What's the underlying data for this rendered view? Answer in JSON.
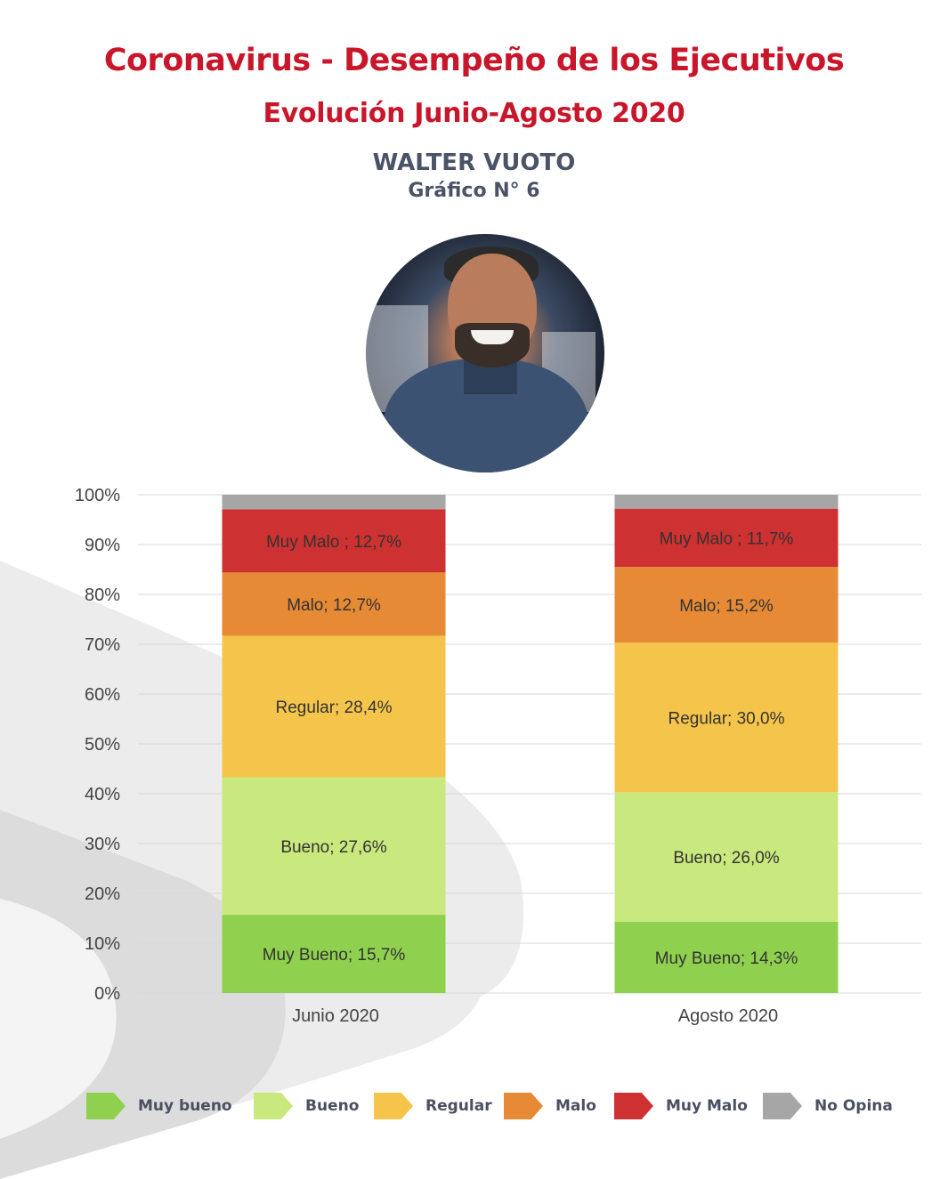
{
  "header": {
    "title": "Coronavirus - Desempeño de los Ejecutivos",
    "subtitle": "Evolución Junio-Agosto 2020",
    "person": "WALTER VUOTO",
    "chart_number": "Gráfico N° 6"
  },
  "colors": {
    "title_red": "#c8162b",
    "heading_gray": "#4a5466",
    "muy_bueno": "#8fd14f",
    "bueno": "#c9e87e",
    "regular": "#f5c54b",
    "malo": "#e68a35",
    "muy_malo": "#ce3131",
    "no_opina": "#a6a6a6"
  },
  "photo": {
    "alt": "photo of Walter Vuoto"
  },
  "legend": [
    {
      "label": "Muy bueno",
      "color": "#8fd14f"
    },
    {
      "label": "Bueno",
      "color": "#c9e87e"
    },
    {
      "label": "Regular",
      "color": "#f5c54b"
    },
    {
      "label": "Malo",
      "color": "#e68a35"
    },
    {
      "label": "Muy Malo",
      "color": "#ce3131"
    },
    {
      "label": "No Opina",
      "color": "#a6a6a6"
    }
  ],
  "chart_data": {
    "type": "bar",
    "stacked": true,
    "categories": [
      "Junio 2020",
      "Agosto 2020"
    ],
    "ylim": [
      0,
      100
    ],
    "yticks": [
      "0%",
      "10%",
      "20%",
      "30%",
      "40%",
      "50%",
      "60%",
      "70%",
      "80%",
      "90%",
      "100%"
    ],
    "grid": true,
    "legend_position": "bottom",
    "series": [
      {
        "name": "Muy bueno",
        "color": "#8fd14f",
        "values": [
          15.7,
          14.3
        ],
        "labels": [
          "Muy Bueno; 15,7%",
          "Muy Bueno; 14,3%"
        ]
      },
      {
        "name": "Bueno",
        "color": "#c9e87e",
        "values": [
          27.6,
          26.0
        ],
        "labels": [
          "Bueno; 27,6%",
          "Bueno; 26,0%"
        ]
      },
      {
        "name": "Regular",
        "color": "#f5c54b",
        "values": [
          28.4,
          30.0
        ],
        "labels": [
          "Regular; 28,4%",
          "Regular; 30,0%"
        ]
      },
      {
        "name": "Malo",
        "color": "#e68a35",
        "values": [
          12.7,
          15.2
        ],
        "labels": [
          "Malo; 12,7%",
          "Malo; 15,2%"
        ]
      },
      {
        "name": "Muy Malo",
        "color": "#ce3131",
        "values": [
          12.7,
          11.7
        ],
        "labels": [
          "Muy Malo ; 12,7%",
          "Muy Malo ; 11,7%"
        ]
      },
      {
        "name": "No Opina",
        "color": "#a6a6a6",
        "values": [
          2.9,
          2.8
        ],
        "labels": [
          "",
          ""
        ]
      }
    ]
  }
}
